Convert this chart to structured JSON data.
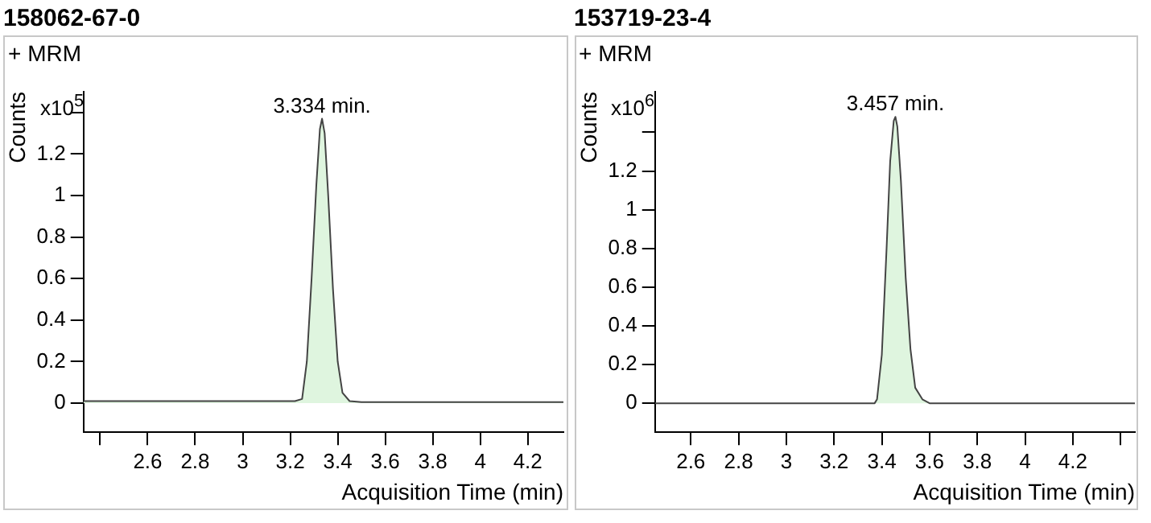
{
  "chart_data": [
    {
      "type": "area",
      "title": "158062-67-0",
      "xlabel": "Acquisition Time (min)",
      "ylabel": "Counts",
      "annotations": [
        "+ MRM",
        "x10$^{5}$",
        {
          "text": "3.334 min.",
          "x": 3.334,
          "y": 1.37
        }
      ],
      "series": [
        {
          "color": "#dff5df",
          "x": [
            2.33,
            2.6,
            3.0,
            3.22,
            3.25,
            3.27,
            3.29,
            3.31,
            3.325,
            3.334,
            3.345,
            3.36,
            3.38,
            3.4,
            3.42,
            3.45,
            3.5,
            3.8,
            4.1,
            4.35
          ],
          "values": [
            0.01,
            0.01,
            0.01,
            0.01,
            0.02,
            0.2,
            0.6,
            1.05,
            1.32,
            1.37,
            1.3,
            1.0,
            0.55,
            0.2,
            0.05,
            0.01,
            0.005,
            0.005,
            0.005,
            0.005
          ]
        }
      ],
      "xlim": [
        2.33,
        4.35
      ],
      "xticks": [
        {
          "value": 2.4,
          "label": null
        },
        2.6,
        2.8,
        3,
        3.2,
        3.4,
        3.6,
        3.8,
        4,
        4.2
      ],
      "ylim": [
        -0.14,
        1.5
      ],
      "yticks": [
        0,
        0.2,
        0.4,
        0.6,
        0.8,
        1,
        1.2,
        {
          "value": 1.4,
          "label": null
        }
      ],
      "grid": false,
      "legend": false
    },
    {
      "type": "area",
      "title": "153719-23-4",
      "xlabel": "Acquisition Time (min)",
      "ylabel": "Counts",
      "annotations": [
        "+ MRM",
        "x10$^{6}$",
        {
          "text": "3.457 min.",
          "x": 3.457,
          "y": 1.48
        }
      ],
      "series": [
        {
          "color": "#dff5df",
          "x": [
            2.45,
            3.0,
            3.37,
            3.38,
            3.4,
            3.42,
            3.435,
            3.45,
            3.457,
            3.465,
            3.48,
            3.5,
            3.52,
            3.54,
            3.57,
            3.6,
            3.8,
            4.46
          ],
          "values": [
            0,
            0,
            0,
            0.02,
            0.25,
            0.8,
            1.25,
            1.46,
            1.48,
            1.43,
            1.15,
            0.65,
            0.28,
            0.08,
            0.02,
            0,
            0,
            0
          ]
        }
      ],
      "xlim": [
        2.45,
        4.46
      ],
      "xticks": [
        2.6,
        2.8,
        3,
        3.2,
        3.4,
        3.6,
        3.8,
        4,
        4.2,
        {
          "value": 4.4,
          "label": null
        }
      ],
      "ylim": [
        -0.15,
        1.61
      ],
      "yticks": [
        0,
        0.2,
        0.4,
        0.6,
        0.8,
        1,
        1.2,
        {
          "value": 1.4,
          "label": null
        }
      ],
      "grid": false,
      "legend": false
    }
  ]
}
